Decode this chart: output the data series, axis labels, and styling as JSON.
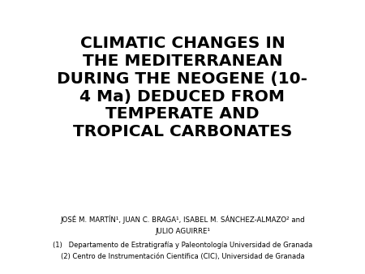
{
  "title_lines": [
    "CLIMATIC CHANGES IN",
    "THE MEDITERRANEAN",
    "DURING THE NEOGENE (10-",
    "4 Ma) DEDUCED FROM",
    "TEMPERATE AND",
    "TROPICAL CARBONATES"
  ],
  "authors_line1": "JOSÉ M. MARTÍN¹, JUAN C. BRAGA¹, ISABEL M. SÁNCHEZ-ALMAZO² and",
  "authors_line2": "JULIO AGUIRRE¹",
  "affil1": "(1)   Departamento de Estratigrafía y Paleontología Universidad de Granada",
  "affil2": "(2) Centro de Instrumentación Científica (CIC), Universidad de Granada",
  "background_color": "#ffffff",
  "title_color": "#000000",
  "title_fontsize": 14.5,
  "authors_fontsize": 6.2,
  "affil_fontsize": 6.0
}
